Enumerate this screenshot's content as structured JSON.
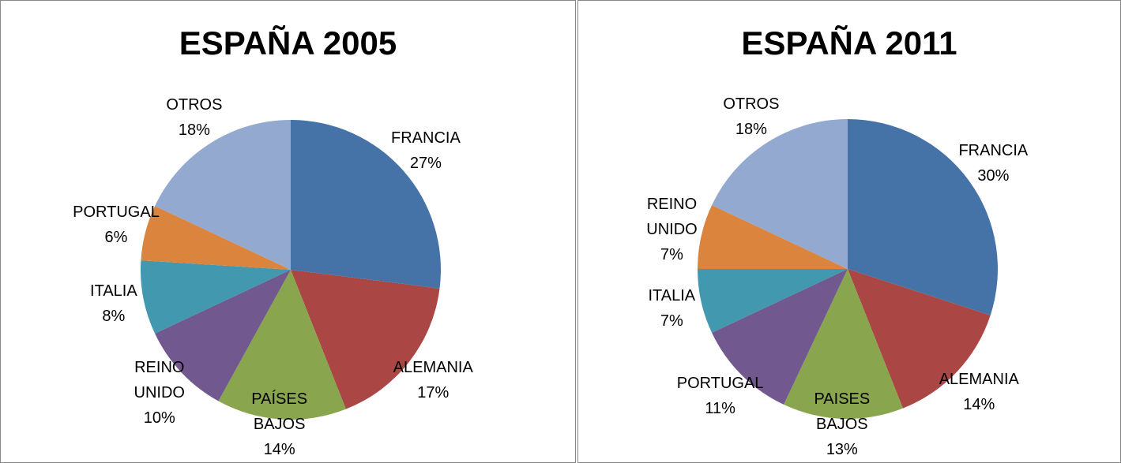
{
  "chart_data": [
    {
      "type": "pie",
      "title": "ESPAÑA 2005",
      "categories": [
        "FRANCIA",
        "ALEMANIA",
        "PAÍSES BAJOS",
        "REINO UNIDO",
        "ITALIA",
        "PORTUGAL",
        "OTROS"
      ],
      "values": [
        27,
        17,
        14,
        10,
        8,
        6,
        18
      ],
      "value_labels": [
        "27%",
        "17%",
        "14%",
        "10%",
        "8%",
        "6%",
        "18%"
      ],
      "colors": [
        "#4572A7",
        "#AA4643",
        "#89A54E",
        "#71588F",
        "#4198AF",
        "#DB843D",
        "#93A9CF"
      ]
    },
    {
      "type": "pie",
      "title": "ESPAÑA 2011",
      "categories": [
        "FRANCIA",
        "ALEMANIA",
        "PAISES BAJOS",
        "PORTUGAL",
        "ITALIA",
        "REINO UNIDO",
        "OTROS"
      ],
      "values": [
        30,
        14,
        13,
        11,
        7,
        7,
        18
      ],
      "value_labels": [
        "30%",
        "14%",
        "13%",
        "11%",
        "7%",
        "7%",
        "18%"
      ],
      "colors": [
        "#4572A7",
        "#AA4643",
        "#89A54E",
        "#71588F",
        "#4198AF",
        "#DB843D",
        "#93A9CF"
      ]
    }
  ]
}
